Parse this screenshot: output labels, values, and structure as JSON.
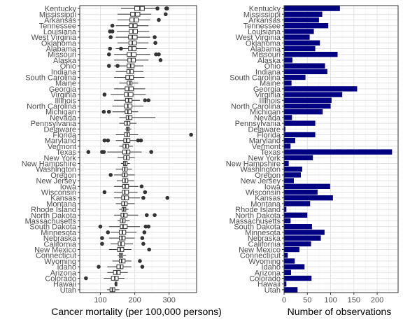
{
  "chart_data": [
    {
      "type": "boxplot",
      "xlabel": "Cancer mortality (per 100,000 persons)",
      "ylabel": "",
      "xlim": [
        40,
        380
      ],
      "xticks": [
        100,
        200,
        300
      ],
      "grid": true,
      "categories": [
        "Kentucky",
        "Mississippi",
        "Arkansas",
        "Tennessee",
        "Louisiana",
        "West Virginia",
        "Oklahoma",
        "Alabama",
        "Missouri",
        "Alaska",
        "Ohio",
        "Indiana",
        "South Carolina",
        "Maine",
        "Georgia",
        "Virginia",
        "Illinois",
        "North Carolina",
        "Michigan",
        "Nevada",
        "Pennsylvania",
        "Delaware",
        "Florida",
        "Maryland",
        "Vermont",
        "Texas",
        "New York",
        "New Hampshire",
        "Washington",
        "Oregon",
        "New Jersey",
        "Iowa",
        "Wisconsin",
        "Kansas",
        "Montana",
        "Rhode Island",
        "North Dakota",
        "Massachusetts",
        "South Dakota",
        "Minnesota",
        "Nebraska",
        "California",
        "New Mexico",
        "Connecticut",
        "Wyoming",
        "Idaho",
        "Arizona",
        "Colorado",
        "Hawaii",
        "Utah"
      ],
      "boxes": [
        {
          "min": 160,
          "q1": 200,
          "median": 215,
          "q3": 228,
          "max": 265,
          "outliers": [
            292,
            266,
            294
          ]
        },
        {
          "min": 150,
          "q1": 188,
          "median": 201,
          "q3": 215,
          "max": 248,
          "outliers": [
            290
          ]
        },
        {
          "min": 150,
          "q1": 186,
          "median": 198,
          "q3": 210,
          "max": 245,
          "outliers": [
            270
          ]
        },
        {
          "min": 145,
          "q1": 184,
          "median": 195,
          "q3": 207,
          "max": 240,
          "outliers": [
            135
          ]
        },
        {
          "min": 148,
          "q1": 184,
          "median": 195,
          "q3": 208,
          "max": 242,
          "outliers": [
            135,
            128
          ]
        },
        {
          "min": 145,
          "q1": 182,
          "median": 193,
          "q3": 207,
          "max": 245,
          "outliers": [
            130,
            258
          ]
        },
        {
          "min": 150,
          "q1": 183,
          "median": 193,
          "q3": 205,
          "max": 240,
          "outliers": [
            260
          ]
        },
        {
          "min": 145,
          "q1": 182,
          "median": 192,
          "q3": 204,
          "max": 235,
          "outliers": [
            128,
            160
          ]
        },
        {
          "min": 140,
          "q1": 178,
          "median": 190,
          "q3": 204,
          "max": 245,
          "outliers": [
            262,
            270,
            125
          ]
        },
        {
          "min": 140,
          "q1": 180,
          "median": 190,
          "q3": 202,
          "max": 240,
          "outliers": [
            275
          ]
        },
        {
          "min": 140,
          "q1": 178,
          "median": 188,
          "q3": 198,
          "max": 225,
          "outliers": [
            125,
            150
          ]
        },
        {
          "min": 145,
          "q1": 177,
          "median": 186,
          "q3": 196,
          "max": 225,
          "outliers": []
        },
        {
          "min": 140,
          "q1": 174,
          "median": 185,
          "q3": 196,
          "max": 228,
          "outliers": []
        },
        {
          "min": 155,
          "q1": 178,
          "median": 186,
          "q3": 192,
          "max": 210,
          "outliers": []
        },
        {
          "min": 140,
          "q1": 172,
          "median": 183,
          "q3": 196,
          "max": 230,
          "outliers": []
        },
        {
          "min": 130,
          "q1": 170,
          "median": 181,
          "q3": 195,
          "max": 232,
          "outliers": [
            112
          ]
        },
        {
          "min": 140,
          "q1": 173,
          "median": 182,
          "q3": 192,
          "max": 215,
          "outliers": [
            230,
            240
          ]
        },
        {
          "min": 135,
          "q1": 170,
          "median": 180,
          "q3": 192,
          "max": 225,
          "outliers": []
        },
        {
          "min": 135,
          "q1": 172,
          "median": 180,
          "q3": 190,
          "max": 210,
          "outliers": [
            110,
            125
          ]
        },
        {
          "min": 155,
          "q1": 175,
          "median": 182,
          "q3": 192,
          "max": 260,
          "outliers": []
        },
        {
          "min": 155,
          "q1": 170,
          "median": 178,
          "q3": 186,
          "max": 205,
          "outliers": []
        },
        {
          "min": 172,
          "q1": 176,
          "median": 180,
          "q3": 184,
          "max": 190,
          "outliers": []
        },
        {
          "min": 145,
          "q1": 170,
          "median": 178,
          "q3": 185,
          "max": 210,
          "outliers": [
            364
          ]
        },
        {
          "min": 145,
          "q1": 168,
          "median": 176,
          "q3": 186,
          "max": 210,
          "outliers": [
            112,
            122,
            210,
            218
          ]
        },
        {
          "min": 155,
          "q1": 166,
          "median": 174,
          "q3": 182,
          "max": 195,
          "outliers": []
        },
        {
          "min": 120,
          "q1": 165,
          "median": 176,
          "q3": 186,
          "max": 220,
          "outliers": [
            65,
            105,
            110,
            248
          ]
        },
        {
          "min": 150,
          "q1": 168,
          "median": 176,
          "q3": 184,
          "max": 200,
          "outliers": []
        },
        {
          "min": 160,
          "q1": 167,
          "median": 172,
          "q3": 178,
          "max": 186,
          "outliers": []
        },
        {
          "min": 145,
          "q1": 165,
          "median": 171,
          "q3": 178,
          "max": 192,
          "outliers": []
        },
        {
          "min": 140,
          "q1": 164,
          "median": 170,
          "q3": 178,
          "max": 200,
          "outliers": [
            130
          ]
        },
        {
          "min": 148,
          "q1": 165,
          "median": 172,
          "q3": 180,
          "max": 198,
          "outliers": []
        },
        {
          "min": 140,
          "q1": 165,
          "median": 172,
          "q3": 182,
          "max": 210,
          "outliers": [
            220
          ]
        },
        {
          "min": 140,
          "q1": 164,
          "median": 171,
          "q3": 182,
          "max": 208,
          "outliers": [
            230,
            112
          ]
        },
        {
          "min": 140,
          "q1": 162,
          "median": 170,
          "q3": 182,
          "max": 215,
          "outliers": [
            295,
            225
          ]
        },
        {
          "min": 145,
          "q1": 162,
          "median": 170,
          "q3": 178,
          "max": 200,
          "outliers": []
        },
        {
          "min": 155,
          "q1": 163,
          "median": 168,
          "q3": 174,
          "max": 182,
          "outliers": []
        },
        {
          "min": 140,
          "q1": 160,
          "median": 168,
          "q3": 178,
          "max": 210,
          "outliers": [
            235,
            258
          ]
        },
        {
          "min": 150,
          "q1": 158,
          "median": 165,
          "q3": 172,
          "max": 185,
          "outliers": []
        },
        {
          "min": 125,
          "q1": 158,
          "median": 166,
          "q3": 178,
          "max": 215,
          "outliers": [
            100,
            232,
            240
          ]
        },
        {
          "min": 130,
          "q1": 155,
          "median": 164,
          "q3": 174,
          "max": 205,
          "outliers": [
            122,
            228
          ]
        },
        {
          "min": 125,
          "q1": 155,
          "median": 163,
          "q3": 172,
          "max": 200,
          "outliers": [
            105,
            222
          ]
        },
        {
          "min": 130,
          "q1": 152,
          "median": 160,
          "q3": 170,
          "max": 195,
          "outliers": [
            105,
            225
          ]
        },
        {
          "min": 125,
          "q1": 150,
          "median": 158,
          "q3": 168,
          "max": 190,
          "outliers": [
            242
          ]
        },
        {
          "min": 150,
          "q1": 155,
          "median": 160,
          "q3": 165,
          "max": 175,
          "outliers": []
        },
        {
          "min": 135,
          "q1": 155,
          "median": 162,
          "q3": 172,
          "max": 190,
          "outliers": [
            215
          ]
        },
        {
          "min": 120,
          "q1": 148,
          "median": 158,
          "q3": 166,
          "max": 190,
          "outliers": [
            95,
            222
          ]
        },
        {
          "min": 120,
          "q1": 138,
          "median": 148,
          "q3": 158,
          "max": 180,
          "outliers": []
        },
        {
          "min": 110,
          "q1": 132,
          "median": 142,
          "q3": 152,
          "max": 170,
          "outliers": [
            58
          ]
        },
        {
          "min": 140,
          "q1": 143,
          "median": 145,
          "q3": 148,
          "max": 150,
          "outliers": []
        },
        {
          "min": 120,
          "q1": 128,
          "median": 135,
          "q3": 142,
          "max": 155,
          "outliers": []
        }
      ]
    },
    {
      "type": "bar",
      "orientation": "horizontal",
      "xlabel": "Number of observations",
      "ylabel": "",
      "xlim": [
        0,
        245
      ],
      "xticks": [
        0,
        50,
        100,
        150,
        200
      ],
      "grid": true,
      "bar_color": "#000080",
      "categories": [
        "Kentucky",
        "Mississippi",
        "Arkansas",
        "Tennessee",
        "Louisiana",
        "West Virginia",
        "Oklahoma",
        "Alabama",
        "Missouri",
        "Alaska",
        "Ohio",
        "Indiana",
        "South Carolina",
        "Maine",
        "Georgia",
        "Virginia",
        "Illinois",
        "North Carolina",
        "Michigan",
        "Nevada",
        "Pennsylvania",
        "Delaware",
        "Florida",
        "Maryland",
        "Vermont",
        "Texas",
        "New York",
        "New Hampshire",
        "Washington",
        "Oregon",
        "New Jersey",
        "Iowa",
        "Wisconsin",
        "Kansas",
        "Montana",
        "Rhode Island",
        "North Dakota",
        "Massachusetts",
        "South Dakota",
        "Minnesota",
        "Nebraska",
        "California",
        "New Mexico",
        "Connecticut",
        "Wyoming",
        "Idaho",
        "Arizona",
        "Colorado",
        "Hawaii",
        "Utah"
      ],
      "values": [
        120,
        82,
        75,
        95,
        64,
        55,
        77,
        67,
        115,
        18,
        88,
        93,
        46,
        16,
        157,
        125,
        102,
        100,
        83,
        17,
        67,
        3,
        67,
        24,
        14,
        232,
        62,
        10,
        39,
        36,
        21,
        99,
        72,
        105,
        56,
        5,
        50,
        14,
        60,
        87,
        79,
        58,
        33,
        8,
        23,
        44,
        15,
        59,
        5,
        29
      ]
    }
  ]
}
